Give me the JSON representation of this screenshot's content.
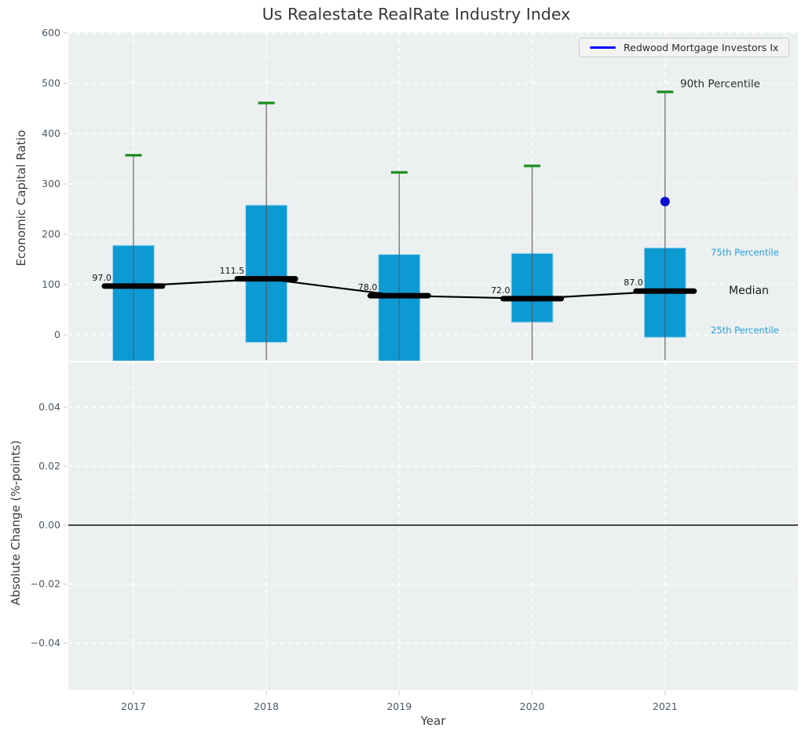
{
  "title": "Us Realestate RealRate Industry Index",
  "legend": {
    "label": "Redwood Mortgage Investors Ix"
  },
  "axes": {
    "top": {
      "ylabel": "Economic Capital Ratio",
      "ytick_labels": [
        "0",
        "100",
        "200",
        "300",
        "400",
        "500",
        "600"
      ]
    },
    "bottom": {
      "ylabel": "Absolute Change (%-points)",
      "ytick_labels": [
        "−0.04",
        "−0.02",
        "0.00",
        "0.02",
        "0.04"
      ]
    },
    "xlabel": "Year",
    "xtick_labels": [
      "2017",
      "2018",
      "2019",
      "2020",
      "2021"
    ]
  },
  "annotations": {
    "p90": "90th Percentile",
    "p75": "75th Percentile",
    "median": "Median",
    "p25": "25th Percentile"
  },
  "chart_data": [
    {
      "type": "box-percentile-with-median-line",
      "title": "Us Realestate RealRate Industry Index",
      "xlabel": "Year",
      "ylabel": "Economic Capital Ratio",
      "categories": [
        2017,
        2018,
        2019,
        2020,
        2021
      ],
      "median": [
        97.0,
        111.5,
        78.0,
        72.0,
        87.0
      ],
      "median_labels": [
        "97.0",
        "111.5",
        "78.0",
        "72.0",
        "87.0"
      ],
      "p25": [
        -52,
        -15,
        -52,
        25,
        -5
      ],
      "p75": [
        178,
        258,
        160,
        162,
        173
      ],
      "p90": [
        357,
        461,
        323,
        336,
        483
      ],
      "note": "boxes span 25th-75th percentile; whiskers extend to axis bottom (clipped); green cap = 90th percentile",
      "company_series": {
        "name": "Redwood Mortgage Investors Ix",
        "points": [
          {
            "x": 2021,
            "y": 265
          }
        ]
      },
      "yticks": [
        0,
        100,
        200,
        300,
        400,
        500,
        600
      ],
      "ylim": [
        -51.6,
        601.6
      ],
      "xlim": [
        2016.51,
        2022.0
      ],
      "grid": true,
      "legend_position": "upper right"
    },
    {
      "type": "line",
      "ylabel": "Absolute Change (%-points)",
      "yticks": [
        -0.04,
        -0.02,
        0.0,
        0.02,
        0.04
      ],
      "ylim": [
        -0.056,
        0.0552
      ],
      "series": [],
      "zero_line": 0.0,
      "grid": true
    }
  ],
  "colors": {
    "plot_bg": "#ecf0f1",
    "grid": "#ffffff",
    "bar": "#0d9ad3",
    "bar_edge": "#addcee",
    "whisker": "#5a5a5a",
    "cap": "#1b8e20",
    "median_line": "#000000",
    "trend_line": "#000000",
    "marker": "#0b0bd6",
    "legend_line": "#0000ff",
    "percentile_label": "#2a9fd8",
    "tick": "#cdd2d6",
    "tick_label": "#4d5a68",
    "zero_line": "#111111"
  }
}
